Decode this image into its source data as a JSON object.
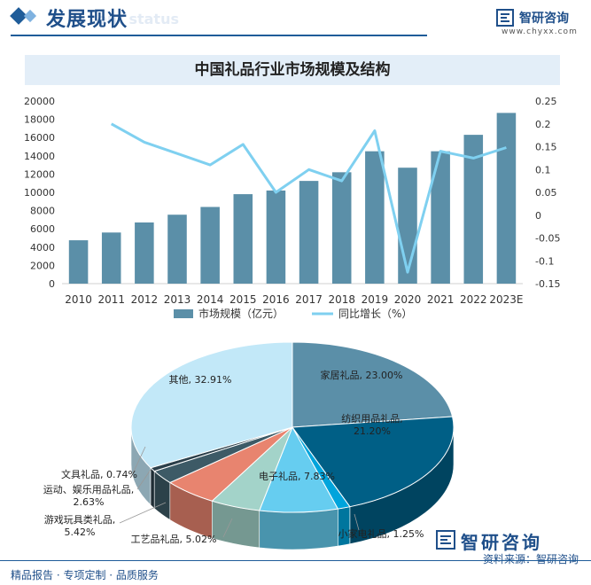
{
  "header": {
    "title": "发展现状",
    "subtitle": "ent status",
    "brand_name": "智研咨询",
    "brand_site": "www.chyxx.com"
  },
  "colors": {
    "bar": "#5b8fa8",
    "line": "#7fd0f0",
    "accent": "#1f5c99"
  },
  "chart_data": [
    {
      "type": "bar",
      "title": "中国礼品行业市场规模及结构",
      "categories": [
        "2010",
        "2011",
        "2012",
        "2013",
        "2014",
        "2015",
        "2016",
        "2017",
        "2018",
        "2019",
        "2020",
        "2021",
        "2022",
        "2023E"
      ],
      "series": [
        {
          "name": "市场规模（亿元）",
          "kind": "bar",
          "axis": "left",
          "values": [
            4750,
            5600,
            6700,
            7550,
            8400,
            9800,
            10200,
            11250,
            12200,
            14500,
            12700,
            14500,
            16300,
            18700
          ]
        },
        {
          "name": "同比增长（%）",
          "kind": "line",
          "axis": "right",
          "values": [
            null,
            0.2,
            0.16,
            0.135,
            0.11,
            0.155,
            0.05,
            0.1,
            0.075,
            0.185,
            -0.125,
            0.14,
            0.125,
            0.148
          ]
        }
      ],
      "yticks_left": [
        "0",
        "2000",
        "4000",
        "6000",
        "8000",
        "10000",
        "12000",
        "14000",
        "16000",
        "18000",
        "20000"
      ],
      "yticks_right": [
        "0.25",
        "0.2",
        "0.15",
        "0.1",
        "0.05",
        "0",
        "-0.05",
        "-0.1",
        "-0.15"
      ],
      "ylim_left": [
        0,
        20000
      ],
      "ylim_right": [
        -0.15,
        0.25
      ],
      "legend": [
        "市场规模（亿元）",
        "同比增长（%）"
      ]
    },
    {
      "type": "pie",
      "slices": [
        {
          "label": "家居礼品, 23.00%",
          "value": 23.0,
          "color": "#5b8fa8"
        },
        {
          "label": "纺织用品礼品, 21.20%",
          "value": 21.2,
          "color": "#005f86"
        },
        {
          "label": "小家电礼品, 1.25%",
          "value": 1.25,
          "color": "#00a4dc"
        },
        {
          "label": "电子礼品, 7.83%",
          "value": 7.83,
          "color": "#66cdf0"
        },
        {
          "label": "工艺品礼品, 5.02%",
          "value": 5.02,
          "color": "#a3d3c9"
        },
        {
          "label": "游戏玩具类礼品, 5.42%",
          "value": 5.42,
          "color": "#e8846f"
        },
        {
          "label": "运动、娱乐用品礼品, 2.63%",
          "value": 2.63,
          "color": "#3d5a66"
        },
        {
          "label": "文具礼品, 0.74%",
          "value": 0.74,
          "color": "#2b3f4a"
        },
        {
          "label": "其他, 32.91%",
          "value": 32.91,
          "color": "#c2e8f8"
        }
      ]
    }
  ],
  "footer": {
    "left": "精品报告 · 专项定制 · 品质服务",
    "logo_name": "智研咨询",
    "source": "资料来源：智研咨询"
  }
}
